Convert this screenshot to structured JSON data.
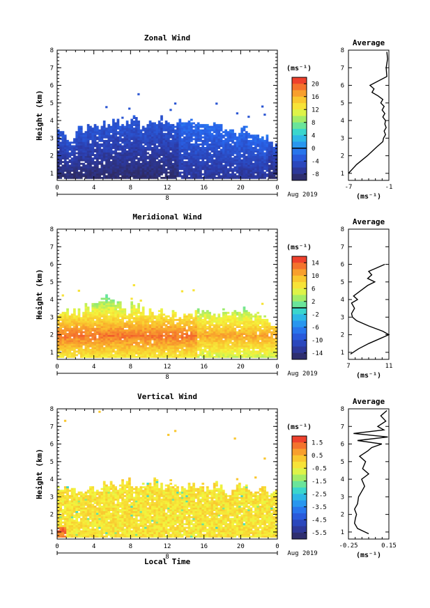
{
  "chart_data": [
    {
      "type": "heatmap",
      "title": "Zonal Wind",
      "xlabel": "",
      "ylabel": "Height (km)",
      "xticks": [
        "0",
        "4",
        "8",
        "12",
        "16",
        "20",
        "0"
      ],
      "yticks": [
        "1",
        "2",
        "3",
        "4",
        "5",
        "6",
        "7",
        "8"
      ],
      "ylim": [
        0.6,
        8.0
      ],
      "xlim": [
        0,
        24
      ],
      "date_marker": "8",
      "date_label": "Aug 2019",
      "colorbar": {
        "unit": "(ms⁻¹)",
        "ticks": [
          "20",
          "16",
          "12",
          "8",
          "4",
          "0",
          "-4",
          "-8"
        ],
        "min": -10,
        "max": 22
      },
      "top_extent_km": [
        3.3,
        3.0,
        3.4,
        3.6,
        3.6,
        3.7,
        3.8,
        3.7,
        4.0,
        3.6,
        3.9,
        4.0,
        3.8,
        3.9,
        4.0,
        3.6,
        3.6,
        3.7,
        3.5,
        3.3,
        3.5,
        3.2,
        3.1,
        2.7
      ],
      "profile": {
        "title": "Average",
        "xlim": [
          -7,
          -1
        ],
        "xticks": [
          "-7",
          "-1"
        ],
        "unit": "(ms⁻¹)",
        "z": [
          1.0,
          1.5,
          2.0,
          2.5,
          2.8,
          3.0,
          3.2,
          3.4,
          3.6,
          3.8,
          4.0,
          4.2,
          4.4,
          4.6,
          4.8,
          5.0,
          5.2,
          5.4,
          5.6,
          5.8,
          6.0,
          6.5,
          7.0,
          7.5,
          7.9
        ],
        "v": [
          -7.0,
          -5.8,
          -4.2,
          -2.8,
          -1.9,
          -1.8,
          -1.5,
          -1.7,
          -1.4,
          -1.6,
          -1.5,
          -1.9,
          -1.6,
          -2.0,
          -1.7,
          -2.2,
          -1.9,
          -2.6,
          -3.5,
          -3.2,
          -3.8,
          -1.3,
          -1.4,
          -1.2,
          -1.3
        ]
      }
    },
    {
      "type": "heatmap",
      "title": "Meridional Wind",
      "xlabel": "",
      "ylabel": "Height (km)",
      "xticks": [
        "0",
        "4",
        "8",
        "12",
        "16",
        "20",
        "0"
      ],
      "yticks": [
        "1",
        "2",
        "3",
        "4",
        "5",
        "6",
        "7",
        "8"
      ],
      "ylim": [
        0.6,
        8.0
      ],
      "xlim": [
        0,
        24
      ],
      "date_marker": "8",
      "date_label": "Aug 2019",
      "colorbar": {
        "unit": "(ms⁻¹)",
        "ticks": [
          "14",
          "10",
          "6",
          "2",
          "-2",
          "-6",
          "-10",
          "-14"
        ],
        "min": -16,
        "max": 16
      },
      "top_extent_km": [
        3.2,
        3.3,
        3.2,
        3.5,
        3.9,
        4.0,
        3.8,
        3.3,
        3.6,
        3.3,
        3.2,
        3.3,
        3.2,
        3.0,
        3.0,
        3.3,
        3.1,
        3.0,
        3.2,
        3.4,
        3.3,
        3.2,
        2.9,
        2.6
      ],
      "profile": {
        "title": "Average",
        "xlim": [
          7,
          11
        ],
        "xticks": [
          "7",
          "11"
        ],
        "unit": "(ms⁻¹)",
        "z": [
          0.9,
          1.2,
          1.5,
          1.8,
          2.0,
          2.2,
          2.5,
          2.8,
          3.0,
          3.2,
          3.5,
          3.8,
          4.0,
          4.2,
          4.5,
          4.8,
          5.0,
          5.2,
          5.4,
          5.6,
          5.8,
          6.0
        ],
        "v": [
          7.2,
          8.0,
          9.0,
          10.2,
          11.0,
          10.4,
          9.0,
          7.8,
          7.4,
          7.3,
          7.6,
          7.3,
          7.9,
          7.5,
          8.2,
          8.9,
          9.6,
          8.9,
          9.3,
          9.0,
          9.8,
          10.6
        ]
      }
    },
    {
      "type": "heatmap",
      "title": "Vertical Wind",
      "xlabel": "Local Time",
      "ylabel": "Height (km)",
      "xticks": [
        "0",
        "4",
        "8",
        "12",
        "16",
        "20",
        "0"
      ],
      "yticks": [
        "1",
        "2",
        "3",
        "4",
        "5",
        "6",
        "7",
        "8"
      ],
      "ylim": [
        0.6,
        8.0
      ],
      "xlim": [
        0,
        24
      ],
      "date_marker": "8",
      "date_label": "Aug 2019",
      "colorbar": {
        "unit": "(ms⁻¹)",
        "ticks": [
          "1.5",
          "0.5",
          "-0.5",
          "-1.5",
          "-2.5",
          "-3.5",
          "-4.5",
          "-5.5"
        ],
        "min": -6,
        "max": 2
      },
      "top_extent_km": [
        3.6,
        3.5,
        3.4,
        3.3,
        3.4,
        3.7,
        3.5,
        3.8,
        3.6,
        3.7,
        3.8,
        3.6,
        3.8,
        3.5,
        3.6,
        3.6,
        3.4,
        3.6,
        3.3,
        3.5,
        3.5,
        3.2,
        3.4,
        3.2
      ],
      "profile": {
        "title": "Average",
        "xlim": [
          -0.25,
          0.15
        ],
        "xticks": [
          "-0.25",
          "0.15"
        ],
        "unit": "(ms⁻¹)",
        "z": [
          0.9,
          1.2,
          1.5,
          1.8,
          2.0,
          2.3,
          2.6,
          3.0,
          3.3,
          3.6,
          4.0,
          4.3,
          4.6,
          5.0,
          5.3,
          5.6,
          5.8,
          6.0,
          6.2,
          6.4,
          6.6,
          6.8,
          7.0,
          7.3,
          7.6,
          7.9
        ],
        "v": [
          -0.05,
          -0.16,
          -0.19,
          -0.18,
          -0.17,
          -0.19,
          -0.16,
          -0.15,
          -0.12,
          -0.09,
          -0.12,
          -0.05,
          -0.11,
          -0.08,
          -0.14,
          -0.06,
          -0.02,
          0.08,
          -0.16,
          0.14,
          -0.2,
          0.1,
          0.04,
          0.12,
          0.07,
          0.13
        ]
      }
    }
  ]
}
